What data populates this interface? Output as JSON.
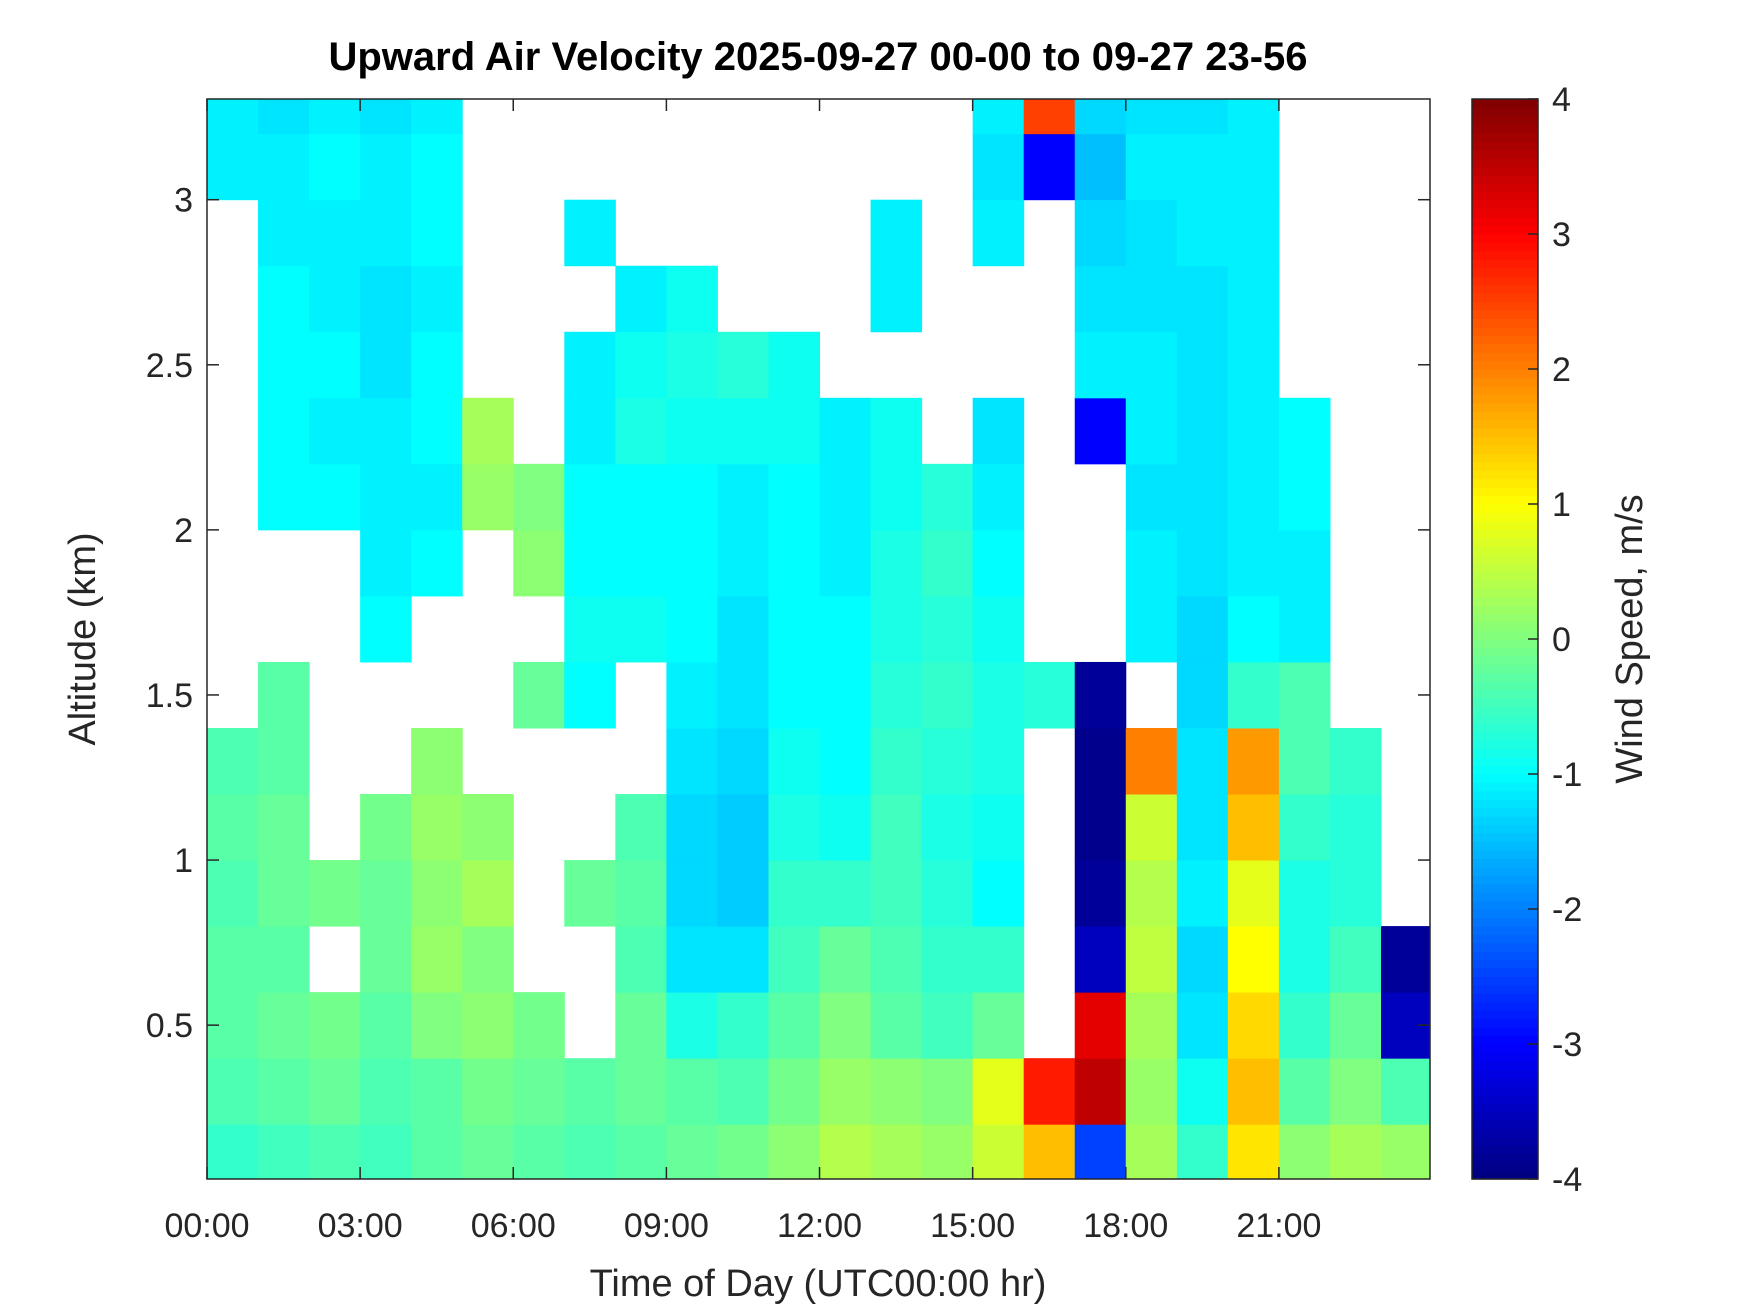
{
  "chart_data": {
    "type": "heatmap",
    "title": "Upward Air Velocity 2025-09-27 00-00 to 09-27 23-56",
    "x_label": "Time of Day (UTC00:00 hr)",
    "y_label": "Altitude (km)",
    "colorbar_label": "Wind Speed, m/s",
    "colormap": "jet",
    "x": [
      0.5,
      1.5,
      2.5,
      3.5,
      4.5,
      5.5,
      6.5,
      7.5,
      8.5,
      9.5,
      10.5,
      11.5,
      12.5,
      13.5,
      14.5,
      15.5,
      16.5,
      17.5,
      18.5,
      19.5,
      20.5,
      21.5,
      22.5,
      23.5
    ],
    "y": [
      0.1,
      0.3,
      0.5,
      0.7,
      0.9,
      1.1,
      1.3,
      1.5,
      1.7,
      1.9,
      2.1,
      2.3,
      2.5,
      2.7,
      2.9,
      3.1,
      3.3
    ],
    "values": [
      [
        -0.6,
        -0.5,
        -0.4,
        -0.5,
        -0.3,
        -0.2,
        -0.3,
        -0.4,
        -0.3,
        -0.2,
        -0.1,
        0.1,
        0.4,
        0.3,
        0.2,
        0.6,
        1.5,
        -2.5,
        0.3,
        -0.6,
        1.2,
        0.1,
        0.3,
        0.2
      ],
      [
        -0.4,
        -0.3,
        -0.2,
        -0.4,
        -0.3,
        -0.1,
        -0.2,
        -0.3,
        -0.2,
        -0.3,
        -0.4,
        -0.1,
        0.2,
        0.1,
        0,
        0.8,
        2.8,
        3.5,
        0.2,
        -0.9,
        1.5,
        -0.3,
        0,
        -0.4
      ],
      [
        -0.3,
        -0.2,
        -0.1,
        -0.3,
        0,
        0.1,
        -0.1,
        null,
        -0.2,
        -0.8,
        -0.6,
        -0.3,
        0,
        -0.3,
        -0.5,
        -0.2,
        null,
        3.2,
        0.3,
        -1.2,
        1.3,
        -0.6,
        -0.2,
        -3.5
      ],
      [
        -0.3,
        -0.3,
        null,
        -0.2,
        0.2,
        0,
        null,
        null,
        -0.4,
        -1.2,
        -1.2,
        -0.5,
        -0.2,
        -0.4,
        -0.6,
        -0.6,
        null,
        -3.5,
        0.5,
        -1.3,
        1.0,
        -0.8,
        -0.5,
        -3.8
      ],
      [
        -0.4,
        -0.2,
        -0.1,
        -0.2,
        0.1,
        0.3,
        null,
        -0.2,
        -0.3,
        -1.3,
        -1.4,
        -0.6,
        -0.6,
        -0.5,
        -0.7,
        -1.0,
        null,
        -3.8,
        0.4,
        -1.1,
        0.8,
        -0.8,
        -0.7,
        null
      ],
      [
        -0.3,
        -0.2,
        null,
        -0.1,
        0.2,
        0.1,
        null,
        null,
        -0.4,
        -1.3,
        -1.4,
        -0.8,
        -0.9,
        -0.5,
        -0.8,
        -0.9,
        null,
        -3.9,
        0.6,
        -1.2,
        1.5,
        -0.6,
        -0.7,
        null
      ],
      [
        -0.4,
        -0.3,
        null,
        null,
        0.1,
        null,
        null,
        null,
        null,
        -1.2,
        -1.3,
        -0.9,
        -1.0,
        -0.6,
        -0.7,
        -0.8,
        null,
        -3.9,
        2.0,
        -1.2,
        1.8,
        -0.4,
        -0.6,
        null
      ],
      [
        null,
        -0.3,
        null,
        null,
        null,
        null,
        -0.2,
        -1.0,
        null,
        -1.1,
        -1.2,
        -1.0,
        -1.0,
        -0.7,
        -0.6,
        -0.8,
        -0.7,
        -3.8,
        null,
        -1.3,
        -0.6,
        -0.4,
        null,
        null
      ],
      [
        null,
        null,
        null,
        -1.0,
        null,
        null,
        null,
        -0.9,
        -0.9,
        -1.0,
        -1.2,
        -1.0,
        -1.0,
        -0.8,
        -0.7,
        -0.9,
        null,
        null,
        -1.1,
        -1.3,
        -1.0,
        -1.1,
        null,
        null
      ],
      [
        null,
        null,
        null,
        -1.1,
        -1.0,
        null,
        0.1,
        -1.0,
        -1.0,
        -1.0,
        -1.1,
        -1.0,
        -1.1,
        -0.8,
        -0.6,
        -1.0,
        null,
        null,
        -1.1,
        -1.2,
        -1.1,
        -1.1,
        null,
        null
      ],
      [
        null,
        -1.0,
        -1.0,
        -1.1,
        -1.1,
        0.2,
        0.0,
        -1.0,
        -1.0,
        -1.0,
        -1.1,
        -1.0,
        -1.1,
        -0.9,
        -0.7,
        -1.1,
        null,
        null,
        -1.2,
        -1.2,
        -1.1,
        -1.0,
        null,
        null
      ],
      [
        null,
        -1.0,
        -1.1,
        -1.1,
        -1.0,
        0.3,
        null,
        -1.1,
        -0.8,
        -0.9,
        -0.9,
        -0.9,
        -1.1,
        -0.9,
        null,
        -1.2,
        null,
        -3.0,
        -1.1,
        -1.2,
        -1.1,
        -1.0,
        null,
        null
      ],
      [
        null,
        -1.0,
        -1.0,
        -1.2,
        -1.0,
        null,
        null,
        -1.1,
        -0.9,
        -0.8,
        -0.7,
        -0.9,
        null,
        null,
        null,
        null,
        null,
        -1.1,
        -1.1,
        -1.2,
        -1.1,
        null,
        null,
        null
      ],
      [
        null,
        -1.0,
        -1.1,
        -1.2,
        -1.1,
        null,
        null,
        null,
        -1.1,
        -0.9,
        null,
        null,
        null,
        -1.1,
        null,
        null,
        null,
        -1.2,
        -1.2,
        -1.2,
        -1.1,
        null,
        null,
        null
      ],
      [
        null,
        -1.1,
        -1.1,
        -1.1,
        -1.0,
        null,
        null,
        -1.1,
        null,
        null,
        null,
        null,
        null,
        -1.1,
        null,
        -1.1,
        null,
        -1.3,
        -1.2,
        -1.1,
        -1.1,
        null,
        null,
        null
      ],
      [
        -1.1,
        -1.1,
        -1.0,
        -1.1,
        -1.0,
        null,
        null,
        null,
        null,
        null,
        null,
        null,
        null,
        null,
        null,
        -1.2,
        -3.0,
        -1.5,
        -1.1,
        -1.1,
        -1.1,
        null,
        null,
        null
      ],
      [
        -1.1,
        -1.2,
        -1.1,
        -1.2,
        -1.1,
        null,
        null,
        null,
        null,
        null,
        null,
        null,
        null,
        null,
        null,
        -1.1,
        2.5,
        -1.3,
        -1.2,
        -1.2,
        -1.1,
        null,
        null,
        null
      ]
    ],
    "xlim": [
      0,
      23.96
    ],
    "xticks": [
      {
        "value": 0,
        "label": "00:00"
      },
      {
        "value": 3,
        "label": "03:00"
      },
      {
        "value": 6,
        "label": "06:00"
      },
      {
        "value": 9,
        "label": "09:00"
      },
      {
        "value": 12,
        "label": "12:00"
      },
      {
        "value": 15,
        "label": "15:00"
      },
      {
        "value": 18,
        "label": "18:00"
      },
      {
        "value": 21,
        "label": "21:00"
      }
    ],
    "ylim": [
      0.034,
      3.305
    ],
    "yticks": [
      0.5,
      1,
      1.5,
      2,
      2.5,
      3
    ],
    "clim": [
      -4,
      4
    ],
    "cticks": [
      -4,
      -3,
      -2,
      -1,
      0,
      1,
      2,
      3,
      4
    ]
  }
}
